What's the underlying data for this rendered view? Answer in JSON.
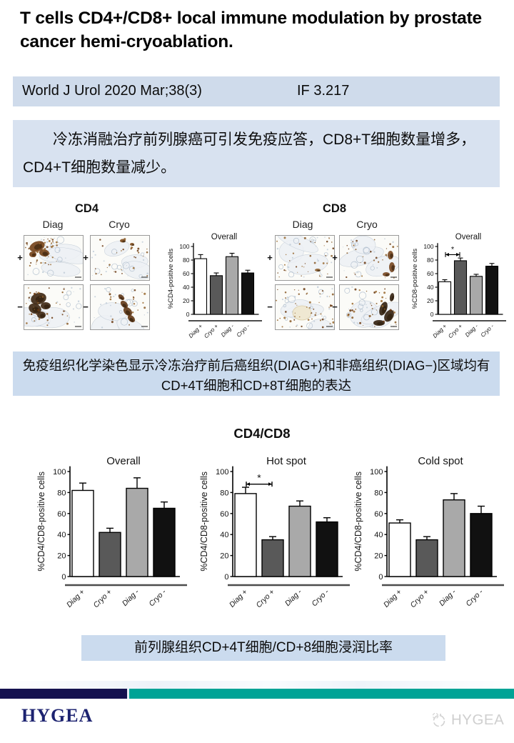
{
  "header": {
    "title": "T cells CD4+/CD8+ local immune modulation by prostate cancer hemi-cryoablation.",
    "journal": "World J Urol 2020 Mar;38(3)",
    "impact_factor": "IF 3.217"
  },
  "summary": {
    "text": "冷冻消融治疗前列腺癌可引发免疫应答，CD8+T细胞数量增多，CD4+T细胞数量减少。"
  },
  "figures": {
    "cd4": {
      "title": "CD4",
      "col_headers": [
        "Diag",
        "Cryo"
      ],
      "row_labels": [
        "+",
        "−"
      ]
    },
    "cd8": {
      "title": "CD8",
      "col_headers": [
        "Diag",
        "Cryo"
      ],
      "row_labels": [
        "+",
        "−"
      ]
    },
    "caption": "免疫组织化学染色显示冷冻治疗前后癌组织(DIAG+)和非癌组织(DIAG−)区域均有CD+4T细胞和CD+8T细胞的表达"
  },
  "ratio_section": {
    "title": "CD4/CD8",
    "caption": "前列腺组织CD+4T细胞/CD+8细胞浸润比率"
  },
  "footer": {
    "logo": "HYGEA",
    "watermark": "HYGEA",
    "navy_color": "#14114f",
    "teal_color": "#00a396"
  },
  "chart_data": [
    {
      "id": "cd4-overall",
      "type": "bar",
      "title": "Overall",
      "ylabel": "%CD4-positive cells",
      "categories": [
        "Diag +",
        "Cryo +",
        "Diag -",
        "Cryo -"
      ],
      "values": [
        82,
        57,
        85,
        61
      ],
      "errors": [
        6,
        4,
        5,
        4
      ],
      "ylim": [
        0,
        100
      ],
      "yticks": [
        0,
        20,
        40,
        60,
        80,
        100
      ],
      "bar_colors": [
        "#ffffff",
        "#595959",
        "#a9a9a9",
        "#111111"
      ],
      "significance": null
    },
    {
      "id": "cd8-overall",
      "type": "bar",
      "title": "Overall",
      "ylabel": "%CD8-positive cells",
      "categories": [
        "Diag +",
        "Cryo +",
        "Diag -",
        "Cryo -"
      ],
      "values": [
        48,
        79,
        56,
        71
      ],
      "errors": [
        3,
        4,
        3,
        4
      ],
      "ylim": [
        0,
        100
      ],
      "yticks": [
        0,
        20,
        40,
        60,
        80,
        100
      ],
      "bar_colors": [
        "#ffffff",
        "#595959",
        "#a9a9a9",
        "#111111"
      ],
      "significance": {
        "between": [
          0,
          1
        ],
        "label": "*",
        "at": 88
      }
    },
    {
      "id": "ratio-overall",
      "type": "bar",
      "title": "Overall",
      "ylabel": "%CD4/CD8-positive cells",
      "categories": [
        "Diag +",
        "Cryo +",
        "Diag -",
        "Cryo -"
      ],
      "values": [
        82,
        42,
        84,
        65
      ],
      "errors": [
        7,
        4,
        10,
        6
      ],
      "ylim": [
        0,
        100
      ],
      "yticks": [
        0,
        20,
        40,
        60,
        80,
        100
      ],
      "bar_colors": [
        "#ffffff",
        "#595959",
        "#a9a9a9",
        "#111111"
      ],
      "significance": null
    },
    {
      "id": "ratio-hotspot",
      "type": "bar",
      "title": "Hot spot",
      "ylabel": "%CD4/CD8-positive cells",
      "categories": [
        "Diag +",
        "Cryo +",
        "Diag -",
        "Cryo -"
      ],
      "values": [
        79,
        35,
        67,
        52
      ],
      "errors": [
        6,
        3,
        5,
        4
      ],
      "ylim": [
        0,
        100
      ],
      "yticks": [
        0,
        20,
        40,
        60,
        80,
        100
      ],
      "bar_colors": [
        "#ffffff",
        "#595959",
        "#a9a9a9",
        "#111111"
      ],
      "significance": {
        "between": [
          0,
          1
        ],
        "label": "*",
        "at": 88
      }
    },
    {
      "id": "ratio-coldspot",
      "type": "bar",
      "title": "Cold spot",
      "ylabel": "%CD4/CD8-positive cells",
      "categories": [
        "Diag +",
        "Cryo +",
        "Diag -",
        "Cryo -"
      ],
      "values": [
        51,
        35,
        73,
        60
      ],
      "errors": [
        3,
        3,
        6,
        7
      ],
      "ylim": [
        0,
        100
      ],
      "yticks": [
        0,
        20,
        40,
        60,
        80,
        100
      ],
      "bar_colors": [
        "#ffffff",
        "#595959",
        "#a9a9a9",
        "#111111"
      ],
      "significance": null
    }
  ]
}
